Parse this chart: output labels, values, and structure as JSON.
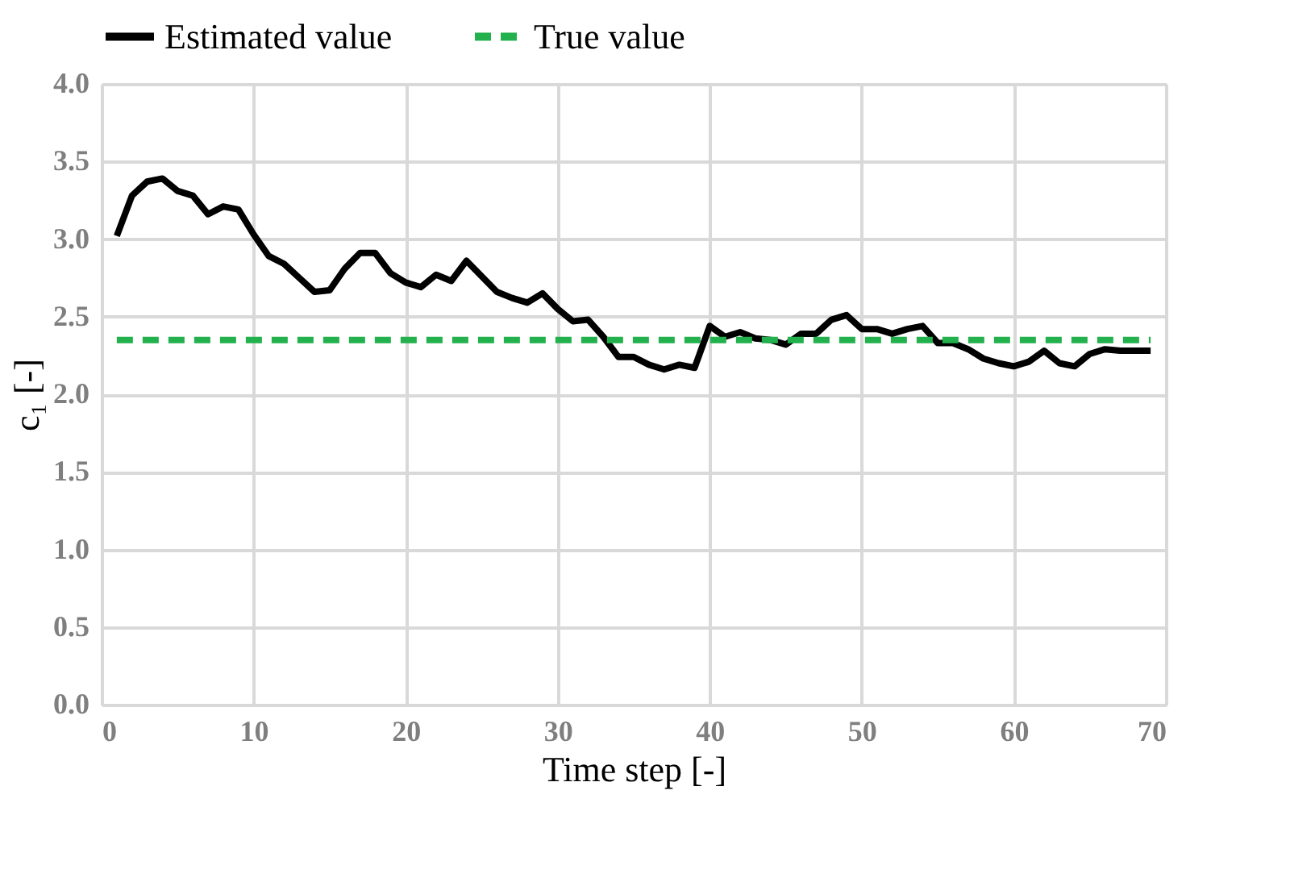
{
  "chart_data": {
    "type": "line",
    "xlabel": "Time step [-]",
    "ylabel": "c₁ [-]",
    "xlim": [
      0,
      70
    ],
    "xticks": [
      0,
      10,
      20,
      30,
      40,
      50,
      60,
      70
    ],
    "ylim": [
      0,
      4
    ],
    "yticks": [
      {
        "value": 0,
        "label": "0.0"
      },
      {
        "value": 0.5,
        "label": "0.5"
      },
      {
        "value": 1,
        "label": "1.0"
      },
      {
        "value": 1.5,
        "label": "1.5"
      },
      {
        "value": 2,
        "label": "2.0"
      },
      {
        "value": 2.5,
        "label": "2.5"
      },
      {
        "value": 3,
        "label": "3.0"
      },
      {
        "value": 3.5,
        "label": "3.5"
      },
      {
        "value": 4,
        "label": "4.0"
      }
    ],
    "grid": true,
    "legend": "top",
    "marker": "none",
    "series": [
      {
        "name": "Estimated value",
        "color": "#000000",
        "line_style": "solid",
        "x": [
          1,
          2,
          3,
          4,
          5,
          6,
          7,
          8,
          9,
          10,
          11,
          12,
          13,
          14,
          15,
          16,
          17,
          18,
          19,
          20,
          21,
          22,
          23,
          24,
          25,
          26,
          27,
          28,
          29,
          30,
          31,
          32,
          33,
          34,
          35,
          36,
          37,
          38,
          39,
          40,
          41,
          42,
          43,
          44,
          45,
          46,
          47,
          48,
          49,
          50,
          51,
          52,
          53,
          54,
          55,
          56,
          57,
          58,
          59,
          60,
          61,
          62,
          63,
          64,
          65,
          66,
          67,
          68,
          69
        ],
        "values": [
          3.02,
          3.28,
          3.37,
          3.39,
          3.31,
          3.28,
          3.16,
          3.21,
          3.19,
          3.03,
          2.89,
          2.84,
          2.75,
          2.66,
          2.67,
          2.81,
          2.91,
          2.91,
          2.78,
          2.72,
          2.69,
          2.77,
          2.73,
          2.86,
          2.76,
          2.66,
          2.62,
          2.59,
          2.65,
          2.55,
          2.47,
          2.48,
          2.37,
          2.24,
          2.24,
          2.19,
          2.16,
          2.19,
          2.17,
          2.44,
          2.37,
          2.4,
          2.36,
          2.35,
          2.32,
          2.39,
          2.39,
          2.48,
          2.51,
          2.42,
          2.42,
          2.39,
          2.42,
          2.44,
          2.33,
          2.33,
          2.29,
          2.23,
          2.2,
          2.18,
          2.21,
          2.28,
          2.2,
          2.18,
          2.26,
          2.29,
          2.28,
          2.28,
          2.28
        ]
      },
      {
        "name": "True value",
        "color": "#22b14c",
        "line_style": "dashed",
        "x": [
          1,
          69
        ],
        "values": [
          2.35,
          2.35
        ]
      }
    ]
  }
}
